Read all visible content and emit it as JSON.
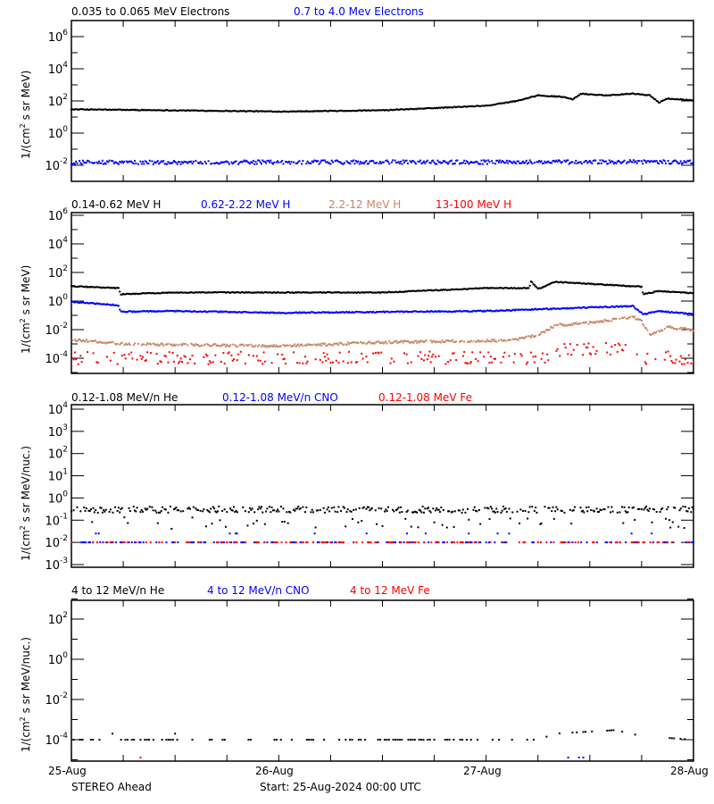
{
  "colors": {
    "black": "#000000",
    "blue": "#0000ff",
    "brown": "#c8866a",
    "red": "#ff0000"
  },
  "x_axis": {
    "type": "date",
    "range": [
      "2024-08-25T00:00",
      "2024-08-28T00:00"
    ],
    "tick_labels": [
      "25-Aug",
      "26-Aug",
      "27-Aug",
      "28-Aug"
    ],
    "minor_tick_hours": 6
  },
  "footer": {
    "left": "STEREO Ahead",
    "center": "Start: 25-Aug-2024 00:00 UTC"
  },
  "chart_data": [
    {
      "type": "scatter",
      "ylabel_parts": [
        "1/(cm",
        "2",
        " s sr MeV)"
      ],
      "yscale": "log",
      "ylim": [
        0.001,
        10000000
      ],
      "ytick_exponents": [
        -2,
        0,
        2,
        4,
        6
      ],
      "series": [
        {
          "name": "0.035 to 0.065 MeV Electrons",
          "color": "#000000",
          "points": [
            [
              "2024-08-25T00:00",
              30
            ],
            [
              "2024-08-25T12:00",
              26
            ],
            [
              "2024-08-26T00:00",
              22
            ],
            [
              "2024-08-26T12:00",
              26
            ],
            [
              "2024-08-27T00:00",
              50
            ],
            [
              "2024-08-27T04:00",
              110
            ],
            [
              "2024-08-27T06:00",
              220
            ],
            [
              "2024-08-27T09:00",
              180
            ],
            [
              "2024-08-27T10:00",
              120
            ],
            [
              "2024-08-27T11:00",
              280
            ],
            [
              "2024-08-27T14:00",
              220
            ],
            [
              "2024-08-27T17:00",
              290
            ],
            [
              "2024-08-27T19:00",
              220
            ],
            [
              "2024-08-27T20:00",
              80
            ],
            [
              "2024-08-27T21:00",
              140
            ],
            [
              "2024-08-28T00:00",
              110
            ]
          ]
        },
        {
          "name": "0.7 to 4.0 Mev Electrons",
          "color": "#0000ff",
          "points": [
            [
              "2024-08-25T00:00",
              0.015
            ],
            [
              "2024-08-28T00:00",
              0.016
            ]
          ]
        }
      ]
    },
    {
      "type": "scatter",
      "ylabel_parts": [
        "1/(cm",
        "2",
        " s sr MeV)"
      ],
      "yscale": "log",
      "ylim": [
        1e-05,
        1000000
      ],
      "ytick_exponents": [
        -4,
        -2,
        0,
        2,
        4,
        6
      ],
      "series": [
        {
          "name": "0.14-0.62 MeV H",
          "color": "#000000",
          "points": [
            [
              "2024-08-25T00:00",
              11
            ],
            [
              "2024-08-25T05:30",
              8
            ],
            [
              "2024-08-25T05:40",
              3
            ],
            [
              "2024-08-25T12:00",
              4
            ],
            [
              "2024-08-26T12:00",
              4
            ],
            [
              "2024-08-27T00:00",
              8
            ],
            [
              "2024-08-27T05:00",
              8
            ],
            [
              "2024-08-27T05:10",
              25
            ],
            [
              "2024-08-27T06:00",
              7
            ],
            [
              "2024-08-27T08:00",
              22
            ],
            [
              "2024-08-27T18:00",
              10
            ],
            [
              "2024-08-27T18:10",
              3
            ],
            [
              "2024-08-27T20:00",
              5
            ],
            [
              "2024-08-28T00:00",
              3.5
            ]
          ]
        },
        {
          "name": "0.62-2.22 MeV H",
          "color": "#0000ff",
          "points": [
            [
              "2024-08-25T00:00",
              0.9
            ],
            [
              "2024-08-25T05:30",
              0.5
            ],
            [
              "2024-08-25T05:40",
              0.18
            ],
            [
              "2024-08-25T12:00",
              0.2
            ],
            [
              "2024-08-26T00:00",
              0.15
            ],
            [
              "2024-08-27T00:00",
              0.2
            ],
            [
              "2024-08-27T17:00",
              0.45
            ],
            [
              "2024-08-27T18:10",
              0.12
            ],
            [
              "2024-08-27T20:00",
              0.2
            ],
            [
              "2024-08-28T00:00",
              0.12
            ]
          ]
        },
        {
          "name": "2.2-12 MeV H",
          "color": "#c8866a",
          "points": [
            [
              "2024-08-25T00:00",
              0.002
            ],
            [
              "2024-08-25T06:00",
              0.001
            ],
            [
              "2024-08-26T00:00",
              0.0007
            ],
            [
              "2024-08-26T12:00",
              0.0013
            ],
            [
              "2024-08-27T03:00",
              0.0018
            ],
            [
              "2024-08-27T06:00",
              0.004
            ],
            [
              "2024-08-27T08:00",
              0.02
            ],
            [
              "2024-08-27T12:00",
              0.03
            ],
            [
              "2024-08-27T17:00",
              0.08
            ],
            [
              "2024-08-27T18:00",
              0.04
            ],
            [
              "2024-08-27T19:00",
              0.004
            ],
            [
              "2024-08-27T21:00",
              0.015
            ],
            [
              "2024-08-28T00:00",
              0.009
            ]
          ]
        },
        {
          "name": "13-100 MeV H",
          "color": "#ff0000",
          "points": [
            [
              "2024-08-25T00:00",
              0.00012
            ],
            [
              "2024-08-27T07:00",
              0.00012
            ],
            [
              "2024-08-27T09:00",
              0.0005
            ],
            [
              "2024-08-27T17:00",
              0.0005
            ],
            [
              "2024-08-27T18:30",
              0.00012
            ],
            [
              "2024-08-28T00:00",
              0.00012
            ]
          ]
        }
      ]
    },
    {
      "type": "scatter",
      "ylabel_parts": [
        "1/(cm",
        "2",
        " s sr MeV/nuc.)"
      ],
      "yscale": "log",
      "ylim": [
        0.001,
        10000
      ],
      "ytick_exponents": [
        -3,
        -2,
        -1,
        0,
        1,
        2,
        3,
        4
      ],
      "series": [
        {
          "name": "0.12-1.08 MeV/n He",
          "color": "#000000",
          "points": [
            [
              "2024-08-25T00:00",
              0.3
            ],
            [
              "2024-08-28T00:00",
              0.3
            ]
          ]
        },
        {
          "name": "0.12-1.08 MeV/n CNO",
          "color": "#0000ff",
          "points": [
            [
              "2024-08-25T00:00",
              0.01
            ],
            [
              "2024-08-28T00:00",
              0.01
            ]
          ]
        },
        {
          "name": "0.12-1.08 MeV Fe",
          "color": "#ff0000",
          "points": [
            [
              "2024-08-25T00:00",
              0.01
            ],
            [
              "2024-08-28T00:00",
              0.01
            ]
          ]
        }
      ]
    },
    {
      "type": "scatter",
      "ylabel_parts": [
        "1/(cm",
        "2",
        " s sr MeV/nuc.)"
      ],
      "yscale": "log",
      "ylim": [
        1e-05,
        1000
      ],
      "ytick_exponents": [
        -4,
        -2,
        0,
        2
      ],
      "series": [
        {
          "name": "4 to 12 MeV/n He",
          "color": "#000000",
          "points": [
            [
              "2024-08-25T00:00",
              0.0001
            ],
            [
              "2024-08-27T06:00",
              0.0001
            ],
            [
              "2024-08-27T08:00",
              0.0002
            ],
            [
              "2024-08-27T15:00",
              0.0003
            ],
            [
              "2024-08-27T18:00",
              0.00015
            ],
            [
              "2024-08-28T00:00",
              0.0001
            ]
          ]
        },
        {
          "name": "4 to 12 MeV/n CNO",
          "color": "#0000ff",
          "points": [
            [
              "2024-08-27T09:30",
              1.3e-05
            ],
            [
              "2024-08-27T10:45",
              1.3e-05
            ],
            [
              "2024-08-27T11:15",
              1.3e-05
            ]
          ]
        },
        {
          "name": "4 to 12 MeV Fe",
          "color": "#ff0000",
          "points": [
            [
              "2024-08-25T08:00",
              1.3e-05
            ]
          ]
        }
      ]
    }
  ]
}
